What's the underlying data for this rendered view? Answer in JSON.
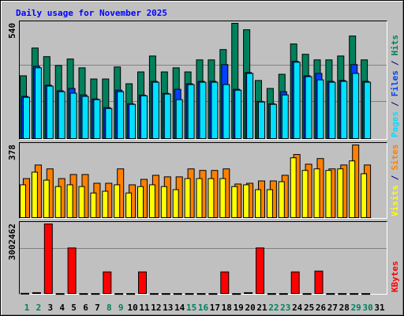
{
  "chart_data": [
    {
      "type": "bar",
      "title": "Daily usage for November 2025",
      "ylim": [
        0,
        540
      ],
      "yticks": [
        540
      ],
      "legend_separator": "/",
      "series": [
        {
          "name": "Hits",
          "color": "#00805c",
          "values": [
            296,
            425,
            385,
            344,
            374,
            333,
            281,
            281,
            337,
            259,
            314,
            388,
            314,
            333,
            314,
            370,
            370,
            418,
            540,
            510,
            274,
            237,
            303,
            444,
            396,
            370,
            370,
            388,
            481,
            370,
            null
          ]
        },
        {
          "name": "Files",
          "color": "#0040ff",
          "values": [
            200,
            340,
            252,
            226,
            237,
            207,
            188,
            148,
            229,
            166,
            206,
            270,
            214,
            233,
            259,
            270,
            270,
            348,
            233,
            311,
            177,
            166,
            222,
            363,
            296,
            307,
            270,
            274,
            348,
            270,
            null
          ]
        },
        {
          "name": "Pages",
          "color": "#00e0ff",
          "values": [
            196,
            333,
            248,
            222,
            215,
            200,
            185,
            144,
            222,
            163,
            203,
            266,
            211,
            185,
            255,
            266,
            266,
            255,
            229,
            307,
            174,
            163,
            207,
            359,
            292,
            277,
            266,
            270,
            307,
            266,
            null
          ]
        }
      ]
    },
    {
      "type": "bar",
      "ylim": [
        0,
        378
      ],
      "yticks": [
        378
      ],
      "legend_separator": "/",
      "series": [
        {
          "name": "Sites",
          "color": "#ff8000",
          "values": [
            205,
            275,
            255,
            205,
            226,
            226,
            181,
            181,
            255,
            173,
            201,
            222,
            214,
            214,
            255,
            247,
            247,
            255,
            177,
            181,
            193,
            193,
            222,
            329,
            279,
            308,
            255,
            275,
            378,
            275,
            null
          ]
        },
        {
          "name": "Visits",
          "color": "#ffff00",
          "values": [
            173,
            238,
            197,
            164,
            173,
            164,
            131,
            140,
            173,
            131,
            164,
            173,
            164,
            148,
            205,
            205,
            205,
            205,
            164,
            173,
            148,
            148,
            189,
            312,
            247,
            255,
            247,
            255,
            296,
            230,
            null
          ]
        }
      ]
    },
    {
      "type": "bar",
      "ylim": [
        0,
        3002462
      ],
      "yticks": [
        3002462
      ],
      "series": [
        {
          "name": "KBytes",
          "color": "#ff0000",
          "values": [
            40000,
            70000,
            3002462,
            30000,
            1979000,
            30000,
            30000,
            955000,
            30000,
            30000,
            955000,
            30000,
            30000,
            30000,
            30000,
            30000,
            30000,
            955000,
            30000,
            70000,
            1979000,
            30000,
            30000,
            955000,
            30000,
            990000,
            30000,
            30000,
            30000,
            30000,
            null
          ]
        }
      ],
      "categories": [
        "1",
        "2",
        "3",
        "4",
        "5",
        "6",
        "7",
        "8",
        "9",
        "10",
        "11",
        "12",
        "13",
        "14",
        "15",
        "16",
        "17",
        "18",
        "19",
        "20",
        "21",
        "22",
        "23",
        "24",
        "25",
        "26",
        "27",
        "28",
        "29",
        "30",
        "31"
      ],
      "category_colors": [
        "#00805c",
        "#00805c",
        "#000000",
        "#000000",
        "#000000",
        "#000000",
        "#000000",
        "#00805c",
        "#00805c",
        "#000000",
        "#000000",
        "#000000",
        "#000000",
        "#000000",
        "#00805c",
        "#00805c",
        "#000000",
        "#000000",
        "#000000",
        "#000000",
        "#000000",
        "#00805c",
        "#00805c",
        "#000000",
        "#000000",
        "#000000",
        "#000000",
        "#000000",
        "#00805c",
        "#00805c",
        "#000000"
      ]
    }
  ]
}
